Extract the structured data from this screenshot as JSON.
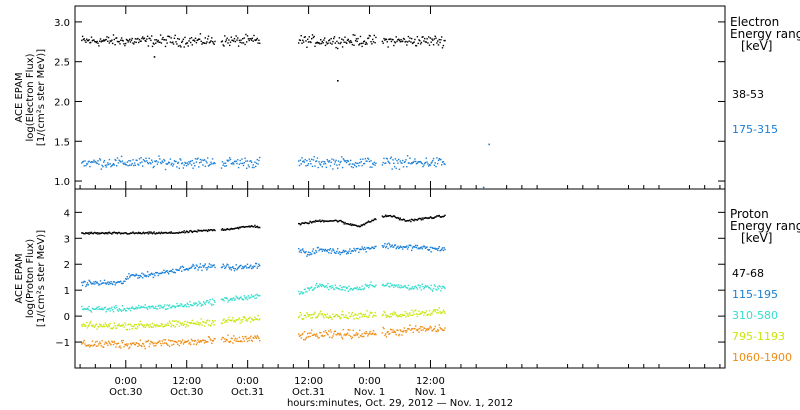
{
  "chart_data": [
    {
      "type": "scatter",
      "panel": "electron",
      "ylabel_lines": [
        "ACE EPAM",
        "log(Electron Flux)",
        "[1/(cm²s ster MeV)]"
      ],
      "ylim": [
        0.9,
        3.2
      ],
      "yticks": [
        1.0,
        1.5,
        2.0,
        2.5,
        3.0
      ],
      "ytick_labels": [
        "1.0",
        "1.5",
        "2.0",
        "2.5",
        "3.0"
      ],
      "legend_title": [
        "Electron",
        "Energy range",
        "[keV]"
      ],
      "series": [
        {
          "name": "38-53",
          "color": "#000000",
          "mean": 2.77,
          "spread": 0.05,
          "outliers": [
            [
              5.5,
              2.57
            ],
            [
              41.6,
              2.27
            ]
          ]
        },
        {
          "name": "175-315",
          "color": "#1a7fd6",
          "mean": 1.24,
          "spread": 0.05,
          "outliers": [
            [
              71.4,
              1.47
            ],
            [
              70.3,
              0.93
            ]
          ]
        }
      ]
    },
    {
      "type": "scatter",
      "panel": "proton",
      "ylabel_lines": [
        "ACE EPAM",
        "log(Proton Flux)",
        "[1/(cm²s ster MeV)]"
      ],
      "ylim": [
        -2.0,
        4.9
      ],
      "yticks": [
        -1,
        0,
        1,
        2,
        3,
        4
      ],
      "ytick_labels": [
        "−1",
        "0",
        "1",
        "2",
        "3",
        "4"
      ],
      "legend_title": [
        "Proton",
        "Energy range",
        "[keV]"
      ],
      "series": [
        {
          "name": "47-68",
          "color": "#000000",
          "spread": 0.03,
          "profile": [
            [
              -1,
              3.22
            ],
            [
              9,
              3.23
            ],
            [
              20,
              3.38
            ],
            [
              25,
              3.5
            ],
            [
              29,
              3.35
            ],
            [
              31,
              3.38
            ],
            [
              32,
              3.5
            ],
            [
              38,
              3.7
            ],
            [
              42,
              3.7
            ],
            [
              43,
              3.6
            ],
            [
              46,
              3.5
            ],
            [
              50,
              3.85
            ],
            [
              52,
              3.9
            ],
            [
              55,
              3.7
            ],
            [
              56,
              3.72
            ],
            [
              61,
              3.85
            ],
            [
              64,
              3.9
            ],
            [
              68,
              3.8
            ],
            [
              70,
              3.85
            ],
            [
              71.5,
              4.1
            ],
            [
              73,
              4.4
            ],
            [
              74.5,
              4.6
            ],
            [
              76,
              4.0
            ],
            [
              80,
              3.5
            ],
            [
              84,
              3.3
            ],
            [
              86,
              3.25
            ],
            [
              100,
              3.2
            ],
            [
              104,
              3.2
            ]
          ]
        },
        {
          "name": "115-195",
          "color": "#1a7fd6",
          "spread": 0.08,
          "profile": [
            [
              -1,
              1.3
            ],
            [
              1,
              1.6
            ],
            [
              4,
              1.6
            ],
            [
              7,
              1.7
            ],
            [
              12,
              1.9
            ],
            [
              18,
              1.95
            ],
            [
              21,
              1.9
            ],
            [
              23,
              1.9
            ],
            [
              26,
              2.0
            ],
            [
              30,
              2.4
            ],
            [
              34,
              2.6
            ],
            [
              36,
              2.4
            ],
            [
              38,
              2.6
            ],
            [
              42,
              2.5
            ],
            [
              46,
              2.6
            ],
            [
              49,
              2.7
            ],
            [
              52,
              2.75
            ],
            [
              55,
              2.65
            ],
            [
              56,
              2.7
            ],
            [
              61,
              2.6
            ],
            [
              65,
              2.7
            ],
            [
              68,
              2.6
            ],
            [
              71,
              2.75
            ],
            [
              73,
              3.4
            ],
            [
              74,
              2.8
            ],
            [
              76,
              2.6
            ],
            [
              78,
              2.55
            ],
            [
              80,
              2.1
            ],
            [
              84,
              1.9
            ],
            [
              86,
              1.55
            ],
            [
              89,
              1.35
            ],
            [
              93,
              1.2
            ],
            [
              98,
              1.3
            ],
            [
              101,
              1.5
            ],
            [
              103,
              1.2
            ],
            [
              104,
              1.2
            ]
          ]
        },
        {
          "name": "310-580",
          "color": "#35ddcc",
          "spread": 0.08,
          "profile": [
            [
              -1,
              0.3
            ],
            [
              4,
              0.35
            ],
            [
              9,
              0.4
            ],
            [
              14,
              0.5
            ],
            [
              21,
              0.7
            ],
            [
              25,
              0.75
            ],
            [
              30,
              0.9
            ],
            [
              34,
              0.95
            ],
            [
              38,
              1.2
            ],
            [
              42,
              1.1
            ],
            [
              46,
              1.1
            ],
            [
              48,
              1.25
            ],
            [
              52,
              1.2
            ],
            [
              55,
              1.15
            ],
            [
              56,
              1.15
            ],
            [
              61,
              1.1
            ],
            [
              65,
              1.15
            ],
            [
              68,
              1.1
            ],
            [
              71,
              1.0
            ],
            [
              73,
              2.2
            ],
            [
              74,
              1.4
            ],
            [
              76,
              1.1
            ],
            [
              80,
              1.0
            ],
            [
              84,
              0.8
            ],
            [
              86,
              0.6
            ],
            [
              89,
              0.3
            ],
            [
              93,
              0.3
            ],
            [
              98,
              0.4
            ],
            [
              101,
              0.55
            ],
            [
              103,
              0.35
            ],
            [
              104,
              0.35
            ]
          ]
        },
        {
          "name": "795-1193",
          "color": "#c9e60a",
          "spread": 0.1,
          "profile": [
            [
              -1,
              -0.35
            ],
            [
              10,
              -0.3
            ],
            [
              20,
              -0.15
            ],
            [
              30,
              -0.05
            ],
            [
              34,
              0.0
            ],
            [
              38,
              0.1
            ],
            [
              42,
              0.05
            ],
            [
              46,
              0.05
            ],
            [
              52,
              0.1
            ],
            [
              55,
              0.1
            ],
            [
              56,
              0.15
            ],
            [
              65,
              0.2
            ],
            [
              71,
              0.2
            ],
            [
              73,
              0.8
            ],
            [
              74,
              0.3
            ],
            [
              76,
              0.1
            ],
            [
              80,
              0.0
            ],
            [
              84,
              -0.15
            ],
            [
              86,
              -0.3
            ],
            [
              89,
              -0.5
            ],
            [
              93,
              -0.5
            ],
            [
              98,
              -0.45
            ],
            [
              101,
              -0.3
            ],
            [
              104,
              -0.35
            ]
          ]
        },
        {
          "name": "1060-1900",
          "color": "#ee8c14",
          "spread": 0.12,
          "profile": [
            [
              -1,
              -1.05
            ],
            [
              10,
              -1.0
            ],
            [
              20,
              -0.9
            ],
            [
              30,
              -0.8
            ],
            [
              38,
              -0.7
            ],
            [
              46,
              -0.65
            ],
            [
              52,
              -0.6
            ],
            [
              55,
              -0.55
            ],
            [
              56,
              -0.5
            ],
            [
              65,
              -0.45
            ],
            [
              71,
              -0.45
            ],
            [
              73,
              -0.1
            ],
            [
              74,
              -0.5
            ],
            [
              76,
              -0.7
            ],
            [
              80,
              -0.7
            ],
            [
              84,
              -0.85
            ],
            [
              86,
              -1.0
            ],
            [
              89,
              -1.1
            ],
            [
              93,
              -1.0
            ],
            [
              98,
              -1.05
            ],
            [
              101,
              -0.9
            ],
            [
              104,
              -0.95
            ]
          ]
        }
      ]
    }
  ],
  "x_axis": {
    "xlabel": "hours:minutes, Oct. 29, 2012 — Nov.  1, 2012",
    "xlim": [
      -10,
      118
    ],
    "unit_note": "hours from 00:00 Oct 30, 2012",
    "ticks": [
      {
        "x": 0,
        "time": "0:00",
        "date": "Oct.30"
      },
      {
        "x": 12,
        "time": "12:00",
        "date": "Oct.30"
      },
      {
        "x": 24,
        "time": "0:00",
        "date": "Oct.31"
      },
      {
        "x": 36,
        "time": "12:00",
        "date": "Oct.31"
      },
      {
        "x": 48,
        "time": "0:00",
        "date": "Nov. 1"
      },
      {
        "x": 60,
        "time": "12:00",
        "date": "Nov. 1"
      }
    ],
    "data_gaps": [
      [
        17.5,
        18.6
      ],
      [
        26.4,
        33.8
      ],
      [
        49.2,
        50.3
      ]
    ],
    "data_range": [
      -8.8,
      62.8
    ]
  }
}
